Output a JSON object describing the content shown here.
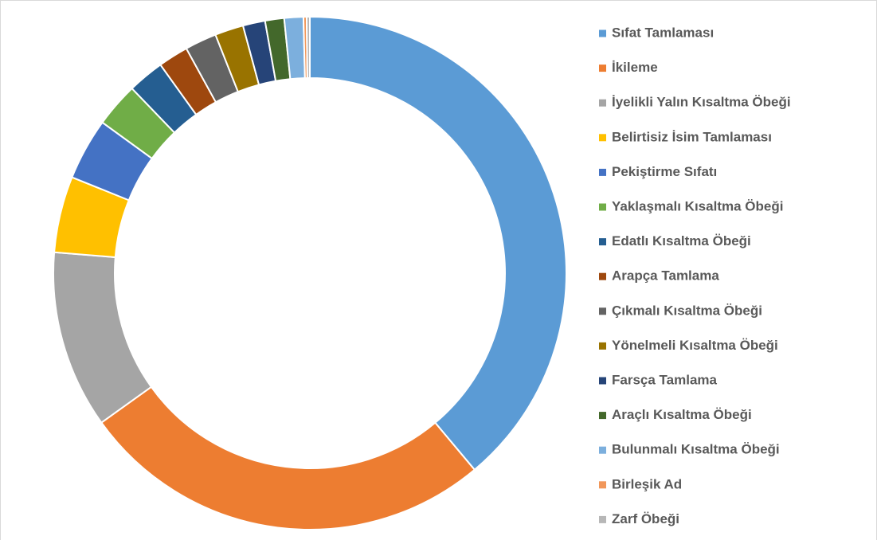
{
  "chart_data": {
    "type": "donut",
    "categories": [
      "Sıfat Tamlaması",
      "İkileme",
      "İyelikli Yalın Kısaltma Öbeği",
      "Belirtisiz İsim Tamlaması",
      "Pekiştirme Sıfatı",
      "Yaklaşmalı Kısaltma Öbeği",
      "Edatlı Kısaltma Öbeği",
      "Arapça Tamlama",
      "Çıkmalı Kısaltma Öbeği",
      "Yönelmeli Kısaltma Öbeği",
      "Farsça Tamlama",
      "Araçlı Kısaltma Öbeği",
      "Bulunmalı Kısaltma Öbeği",
      "Birleşik Ad",
      "Zarf Öbeği"
    ],
    "values": [
      38.9,
      26.2,
      11.2,
      4.8,
      3.9,
      2.8,
      2.3,
      1.9,
      2.0,
      1.8,
      1.4,
      1.2,
      1.2,
      0.2,
      0.2
    ],
    "colors": [
      "#5b9bd5",
      "#ed7d31",
      "#a5a5a5",
      "#ffc000",
      "#4472c4",
      "#70ad47",
      "#255e91",
      "#9e480e",
      "#636363",
      "#997300",
      "#264478",
      "#43682b",
      "#7cafdd",
      "#f1975a",
      "#b7b7b7"
    ],
    "legend": "right"
  }
}
